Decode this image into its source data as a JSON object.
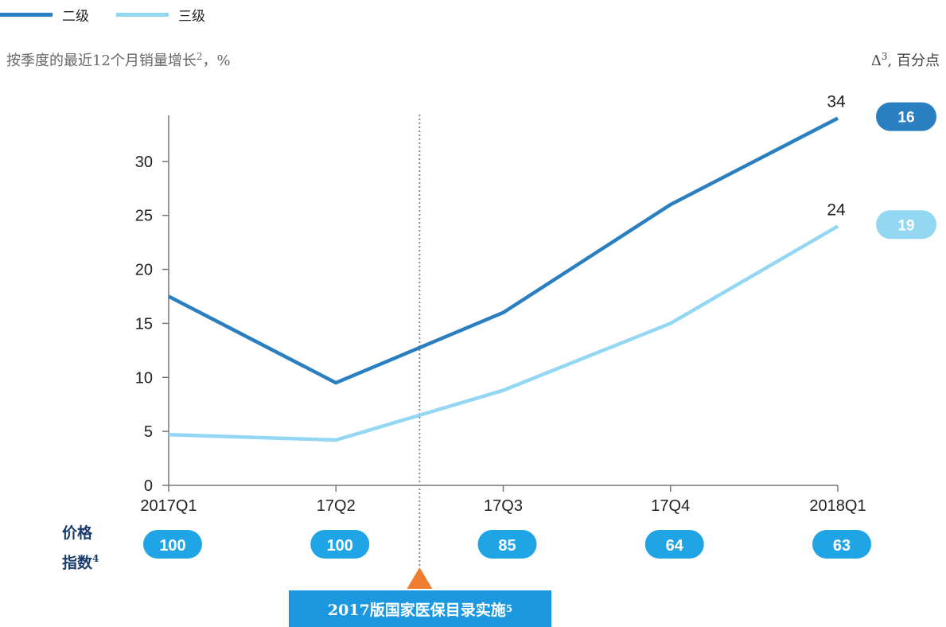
{
  "legend": [
    {
      "name": "二级",
      "color": "#2a7fc1"
    },
    {
      "name": "三级",
      "color": "#93d7f3"
    }
  ],
  "subtitle": {
    "text": "按季度的最近12个月销量增长",
    "sup": "2",
    "suffix": "，%"
  },
  "delta_header": {
    "prefix": "Δ",
    "sup": "3",
    "suffix": ", 百分点"
  },
  "chart_data": {
    "type": "line",
    "categories": [
      "2017Q1",
      "17Q2",
      "17Q3",
      "17Q4",
      "2018Q1"
    ],
    "series": [
      {
        "name": "二级",
        "values": [
          17.5,
          9.5,
          16,
          26,
          34
        ],
        "color": "#2a7fc1",
        "end_label": "34",
        "delta": "16"
      },
      {
        "name": "三级",
        "values": [
          4.7,
          4.2,
          8.8,
          15,
          24
        ],
        "color": "#93d7f3",
        "end_label": "24",
        "delta": "19"
      }
    ],
    "ylim": [
      0,
      35
    ],
    "yticks": [
      0,
      5,
      10,
      15,
      20,
      25,
      30
    ],
    "marker": {
      "position": 1.5,
      "label": "2017版国家医保目录实施",
      "sup": "5",
      "color": "#ee7d31"
    }
  },
  "price_index": {
    "label_line1": "价格",
    "label_line2": "指数",
    "sup": "4",
    "values": [
      "100",
      "100",
      "85",
      "64",
      "63"
    ],
    "color": "#1fa5e6"
  }
}
